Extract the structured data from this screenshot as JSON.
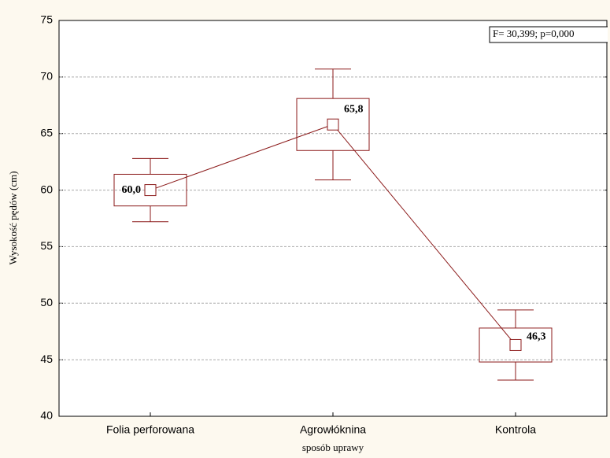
{
  "chart_data": {
    "type": "box",
    "categories": [
      "Folia perforowana",
      "Agrowłóknina",
      "Kontrola"
    ],
    "mean": [
      60.0,
      65.8,
      46.3
    ],
    "value_labels": [
      "60,0",
      "65,8",
      "46,3"
    ],
    "box_low": [
      58.6,
      63.5,
      44.8
    ],
    "box_high": [
      61.4,
      68.1,
      47.8
    ],
    "whisker_low": [
      57.2,
      60.9,
      43.2
    ],
    "whisker_high": [
      62.8,
      70.7,
      49.4
    ],
    "color": "#8b1a1a",
    "ylim": [
      40,
      75
    ],
    "yticks": [
      40,
      45,
      50,
      55,
      60,
      65,
      70,
      75
    ],
    "grid": true,
    "xlabel": "sposób uprawy",
    "ylabel": "Wysokość pędów (cm)",
    "annotation": "F= 30,399; p=0,000"
  }
}
